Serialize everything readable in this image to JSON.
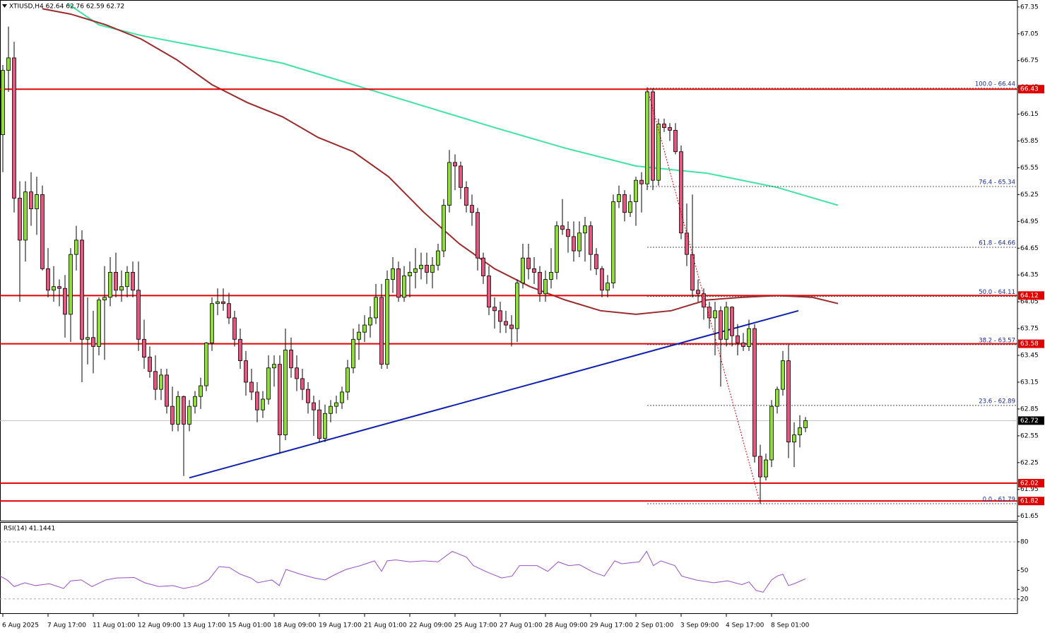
{
  "chart_data": [
    {
      "type": "candlestick",
      "title": "XTIUSD,H4 62.64 62.76 62.59 62.72",
      "open": [
        65.92,
        66.64,
        66.78,
        65.21,
        64.74,
        65.28,
        65.09,
        65.25,
        64.42,
        64.18,
        64.22,
        64.2,
        63.91,
        64.58,
        64.74,
        63.63,
        63.65,
        63.55,
        64.07,
        64.1,
        64.38,
        64.18,
        64.22,
        64.38,
        64.18,
        63.63,
        63.43,
        63.27,
        63.07,
        63.23,
        62.88,
        62.68,
        62.99,
        62.68,
        62.88,
        62.99,
        63.11,
        63.59,
        64.03,
        64.05,
        64.03,
        63.87,
        63.63,
        63.39,
        63.15,
        63.04,
        62.84,
        62.96,
        63.31,
        63.35,
        62.56,
        63.51,
        63.31,
        63.19,
        63.07,
        62.92,
        62.84,
        62.52,
        62.8,
        62.88,
        62.92,
        63.04,
        63.31,
        63.63,
        63.71,
        63.79,
        63.87,
        64.1,
        63.35,
        64.3,
        64.42,
        64.1,
        64.34,
        64.38,
        64.42,
        64.46,
        64.38,
        64.46,
        64.62,
        65.13,
        65.61,
        65.57,
        65.33,
        65.13,
        65.05,
        64.54,
        64.34,
        63.99,
        63.95,
        63.83,
        63.79,
        63.75,
        64.26,
        64.54,
        64.42,
        64.38,
        64.14,
        64.3,
        64.38,
        64.9,
        64.86,
        64.78,
        64.62,
        64.82,
        64.9,
        64.58,
        64.42,
        64.18,
        64.26,
        65.17,
        65.25,
        65.05,
        65.17,
        65.41,
        65.37,
        66.4,
        65.41,
        66.04,
        66.0,
        65.97,
        65.73,
        64.82,
        64.58,
        64.18,
        64.14,
        63.99,
        63.87,
        63.95,
        63.63,
        63.99,
        63.67,
        63.59,
        63.55,
        63.75,
        62.32,
        62.09,
        62.28,
        62.88,
        63.07,
        63.39,
        62.48,
        62.56,
        62.64
      ],
      "high": [
        66.7,
        67.13,
        66.96,
        65.4,
        65.4,
        65.5,
        65.45,
        65.35,
        64.65,
        64.45,
        64.3,
        64.35,
        64.65,
        64.9,
        64.85,
        64.1,
        63.95,
        64.1,
        64.45,
        64.55,
        64.6,
        64.4,
        64.45,
        64.5,
        64.5,
        63.85,
        63.55,
        63.45,
        63.3,
        63.3,
        63.1,
        63.05,
        63.0,
        62.95,
        63.05,
        63.2,
        63.6,
        64.1,
        64.2,
        64.2,
        64.15,
        63.95,
        63.75,
        63.5,
        63.3,
        63.15,
        63.05,
        63.45,
        63.45,
        63.45,
        63.75,
        63.65,
        63.45,
        63.3,
        63.15,
        63.0,
        62.95,
        62.9,
        62.95,
        63.0,
        63.1,
        63.4,
        63.75,
        63.8,
        63.9,
        64.0,
        64.25,
        64.25,
        64.4,
        64.55,
        64.5,
        64.45,
        64.5,
        64.65,
        64.6,
        64.6,
        64.55,
        64.7,
        65.2,
        65.75,
        65.7,
        65.62,
        65.4,
        65.25,
        65.1,
        64.6,
        64.45,
        64.1,
        64.05,
        63.95,
        63.9,
        64.3,
        64.7,
        64.7,
        64.55,
        64.45,
        64.4,
        64.65,
        64.95,
        65.2,
        64.95,
        64.95,
        64.95,
        65.0,
        64.95,
        64.65,
        64.45,
        64.35,
        65.25,
        65.35,
        65.3,
        65.25,
        65.45,
        65.5,
        66.45,
        66.44,
        66.1,
        66.1,
        66.05,
        66.05,
        65.8,
        65.15,
        65.25,
        64.3,
        64.2,
        64.05,
        64.05,
        64.0,
        64.05,
        64.0,
        63.8,
        63.7,
        63.85,
        63.8,
        62.45,
        62.35,
        62.95,
        63.1,
        63.5,
        63.57,
        62.7,
        62.78,
        62.76
      ],
      "low": [
        65.5,
        66.4,
        65.05,
        64.05,
        64.5,
        64.9,
        64.8,
        64.4,
        64.1,
        64.05,
        64.0,
        63.65,
        63.6,
        64.4,
        63.15,
        63.35,
        63.25,
        63.45,
        63.4,
        64.0,
        64.1,
        64.05,
        64.1,
        64.1,
        63.5,
        63.3,
        63.2,
        62.95,
        62.95,
        62.8,
        62.6,
        62.6,
        62.1,
        62.6,
        62.8,
        62.85,
        63.05,
        63.5,
        63.9,
        63.95,
        63.8,
        63.55,
        63.3,
        63.0,
        62.95,
        62.7,
        62.75,
        62.9,
        63.1,
        62.35,
        62.5,
        63.2,
        63.05,
        62.95,
        62.8,
        62.55,
        62.48,
        62.48,
        62.7,
        62.8,
        62.85,
        62.95,
        63.25,
        63.4,
        63.6,
        63.65,
        63.8,
        63.3,
        63.3,
        64.15,
        64.05,
        64.05,
        64.1,
        64.2,
        64.3,
        64.25,
        64.2,
        64.4,
        64.55,
        65.05,
        65.3,
        65.2,
        65.05,
        64.9,
        64.4,
        64.25,
        63.9,
        63.75,
        63.7,
        63.7,
        63.55,
        63.6,
        64.2,
        64.3,
        64.25,
        64.05,
        64.05,
        64.2,
        64.3,
        64.8,
        64.6,
        64.5,
        64.55,
        64.5,
        64.4,
        64.35,
        64.1,
        64.1,
        64.2,
        65.1,
        64.95,
        65.0,
        64.9,
        65.05,
        65.3,
        65.3,
        65.35,
        65.95,
        65.85,
        65.7,
        64.75,
        64.45,
        64.1,
        64.05,
        63.85,
        63.75,
        63.45,
        63.1,
        63.55,
        63.55,
        63.45,
        63.5,
        63.5,
        62.25,
        61.79,
        62.05,
        62.2,
        62.8,
        63.0,
        62.3,
        62.2,
        62.42,
        62.59
      ],
      "close": [
        66.64,
        66.78,
        65.21,
        64.74,
        65.28,
        65.09,
        65.25,
        64.42,
        64.18,
        64.22,
        64.2,
        63.91,
        64.58,
        64.74,
        63.63,
        63.65,
        63.55,
        64.07,
        64.1,
        64.38,
        64.18,
        64.22,
        64.38,
        64.18,
        63.63,
        63.43,
        63.27,
        63.07,
        63.23,
        62.88,
        62.68,
        62.99,
        62.68,
        62.88,
        62.99,
        63.11,
        63.59,
        64.03,
        64.05,
        64.03,
        63.87,
        63.63,
        63.39,
        63.15,
        63.04,
        62.84,
        62.96,
        63.31,
        63.35,
        62.56,
        63.51,
        63.31,
        63.19,
        63.07,
        62.92,
        62.84,
        62.52,
        62.8,
        62.88,
        62.92,
        63.04,
        63.31,
        63.63,
        63.71,
        63.79,
        63.87,
        64.1,
        63.35,
        64.3,
        64.42,
        64.1,
        64.34,
        64.38,
        64.42,
        64.46,
        64.38,
        64.46,
        64.62,
        65.13,
        65.61,
        65.57,
        65.33,
        65.13,
        65.05,
        64.54,
        64.34,
        63.99,
        63.95,
        63.83,
        63.79,
        63.75,
        64.26,
        64.54,
        64.42,
        64.38,
        64.14,
        64.3,
        64.38,
        64.9,
        64.86,
        64.78,
        64.62,
        64.82,
        64.9,
        64.58,
        64.42,
        64.18,
        64.26,
        65.17,
        65.25,
        65.05,
        65.17,
        65.41,
        65.37,
        66.4,
        65.41,
        66.04,
        66.0,
        65.97,
        65.73,
        64.82,
        64.58,
        64.18,
        64.14,
        63.99,
        63.87,
        63.95,
        63.63,
        63.99,
        63.67,
        63.59,
        63.55,
        63.75,
        62.32,
        62.09,
        62.28,
        62.88,
        63.07,
        63.39,
        62.48,
        62.56,
        62.64,
        62.72
      ],
      "up_color": "#8fdc3f",
      "down_color": "#e2587c",
      "xlim": [
        -0.5,
        179.5
      ],
      "xticks": [
        {
          "value": 0,
          "label": "6 Aug 2025"
        },
        {
          "value": 8,
          "label": "7 Aug 17:00"
        },
        {
          "value": 16,
          "label": "11 Aug 01:00"
        },
        {
          "value": 24,
          "label": "12 Aug 09:00"
        },
        {
          "value": 32,
          "label": "13 Aug 17:00"
        },
        {
          "value": 40,
          "label": "15 Aug 01:00"
        },
        {
          "value": 48,
          "label": "18 Aug 09:00"
        },
        {
          "value": 56,
          "label": "19 Aug 17:00"
        },
        {
          "value": 64,
          "label": "21 Aug 01:00"
        },
        {
          "value": 72,
          "label": "22 Aug 09:00"
        },
        {
          "value": 80,
          "label": "25 Aug 17:00"
        },
        {
          "value": 88,
          "label": "27 Aug 01:00"
        },
        {
          "value": 96,
          "label": "28 Aug 09:00"
        },
        {
          "value": 104,
          "label": "29 Aug 17:00"
        },
        {
          "value": 112,
          "label": "2 Sep 01:00"
        },
        {
          "value": 120,
          "label": "3 Sep 09:00"
        },
        {
          "value": 128,
          "label": "4 Sep 17:00"
        },
        {
          "value": 136,
          "label": "8 Sep 01:00"
        }
      ],
      "ylim": [
        61.6,
        67.42
      ],
      "yticks": [
        67.35,
        67.05,
        66.75,
        66.45,
        66.15,
        65.85,
        65.55,
        65.25,
        64.95,
        64.65,
        64.35,
        64.05,
        63.75,
        63.45,
        63.15,
        62.85,
        62.55,
        62.25,
        61.95,
        61.65
      ],
      "moving_averages": [
        {
          "color": "#3fe3a2",
          "x": [
            11.4,
            17,
            24.5,
            37,
            49.5,
            62,
            74.5,
            87,
            99.5,
            112,
            124.5,
            137,
            147.75
          ],
          "values": [
            67.39,
            67.15,
            67.03,
            66.88,
            66.72,
            66.48,
            66.24,
            66.0,
            65.77,
            65.57,
            65.49,
            65.33,
            65.13
          ]
        },
        {
          "color": "#9c2b2b",
          "x": [
            7,
            12,
            18.25,
            24.5,
            30.75,
            37,
            43.25,
            49.5,
            55.75,
            62,
            68.25,
            74.5,
            80.75,
            87,
            93.25,
            99.5,
            105.75,
            112,
            118.25,
            124.5,
            130.75,
            137,
            143.25,
            147.75
          ],
          "values": [
            67.33,
            67.27,
            67.15,
            66.99,
            66.76,
            66.48,
            66.28,
            66.12,
            65.89,
            65.73,
            65.45,
            65.05,
            64.7,
            64.42,
            64.22,
            64.07,
            63.95,
            63.91,
            63.95,
            64.07,
            64.1,
            64.12,
            64.1,
            64.03
          ]
        }
      ],
      "levels": [
        66.43,
        64.12,
        63.58,
        62.02,
        61.82
      ],
      "level_color": "#e00000",
      "last_price": 62.72,
      "fib": [
        {
          "value": 66.44,
          "label": "100.0 - 66.44"
        },
        {
          "value": 65.34,
          "label": "76.4 - 65.34"
        },
        {
          "value": 64.66,
          "label": "61.8 - 64.66"
        },
        {
          "value": 64.11,
          "label": "50.0 - 64.11"
        },
        {
          "value": 63.57,
          "label": "38.2 - 63.57"
        },
        {
          "value": 62.89,
          "label": "23.6 - 62.89"
        },
        {
          "value": 61.79,
          "label": "0.0 - 61.79"
        }
      ],
      "fib_anchor": {
        "x": [
          114,
          134
        ],
        "values": [
          66.44,
          61.79
        ]
      },
      "trendline": {
        "color": "#1020b4",
        "x": [
          33,
          140.75
        ],
        "values": [
          62.08,
          63.95
        ]
      }
    },
    {
      "type": "line",
      "title": "RSI(14) 41.1441",
      "xlim": [
        -0.5,
        179.5
      ],
      "ylim": [
        5,
        100
      ],
      "yticks": [
        80,
        50,
        30,
        20
      ],
      "levels": [
        80,
        20
      ],
      "series": [
        {
          "color": "#9b4dca",
          "x": [
            -0.5,
            0.75,
            2,
            3.9,
            5.75,
            8.25,
            10.75,
            12,
            13.9,
            15.75,
            18.25,
            20.1,
            23.25,
            25.1,
            27.6,
            30.1,
            32,
            34.5,
            36.4,
            38.25,
            40.1,
            42,
            43.9,
            45.1,
            47.6,
            48.9,
            50.1,
            52.6,
            55.1,
            57,
            58.9,
            60.75,
            63.25,
            65.75,
            67,
            68,
            69.5,
            72,
            74.5,
            77,
            79.5,
            82,
            83.25,
            85.75,
            88.25,
            90.1,
            91.4,
            94.5,
            96.4,
            98.25,
            100.1,
            102,
            104.5,
            106.4,
            108.25,
            109.5,
            112.6,
            113.9,
            115.1,
            116.4,
            118.9,
            120.1,
            122.6,
            125.75,
            128.25,
            130.75,
            132,
            133.25,
            134.5,
            136,
            137,
            138,
            139,
            140,
            142
          ],
          "values": [
            44,
            40,
            33,
            37,
            34,
            36,
            31,
            39,
            40,
            33,
            40,
            42,
            42.5,
            37,
            33,
            34,
            31,
            34,
            40,
            54,
            53,
            46,
            42,
            37,
            40,
            34,
            51,
            46,
            42,
            40,
            46,
            51,
            55,
            60,
            49,
            60,
            61,
            59,
            60,
            59,
            70,
            64,
            55,
            48,
            42,
            44,
            55,
            55,
            49,
            59,
            55,
            56,
            48,
            44,
            60,
            57,
            59,
            70,
            55,
            60,
            55,
            44,
            40,
            37,
            39,
            35,
            38,
            29,
            27,
            40,
            44,
            46,
            34,
            36,
            41.14
          ]
        }
      ]
    }
  ]
}
